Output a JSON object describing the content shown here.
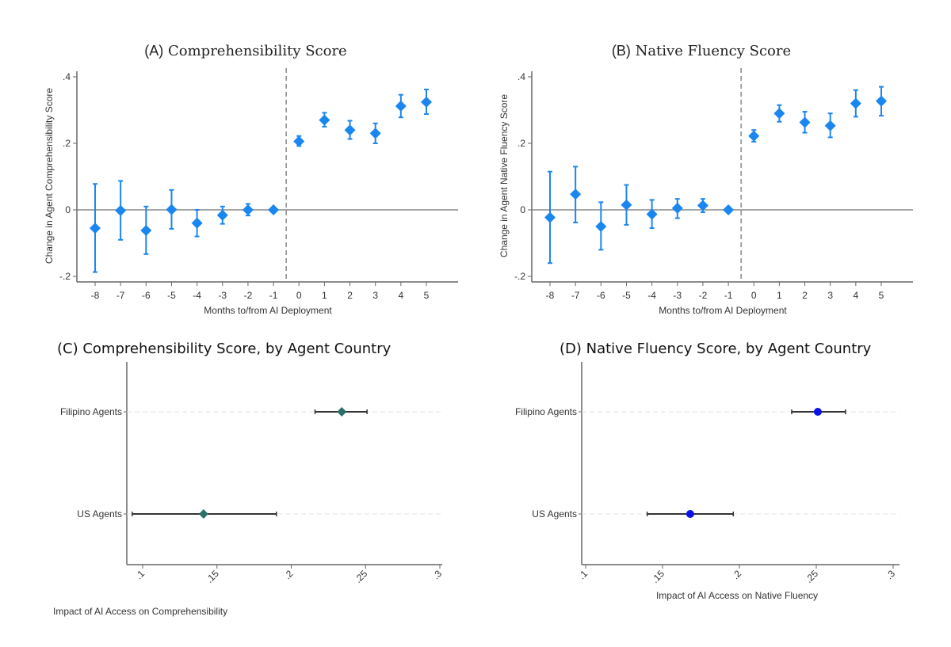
{
  "colors": {
    "event_study": "#1a87f0",
    "comp_country": "#2a7068",
    "fluency_country": "#0a12e8",
    "ci_country": "#333333"
  },
  "chart_data": [
    {
      "id": "A",
      "type": "scatter",
      "subtype": "event-study with 95% CI",
      "title_prefix": "(A)",
      "title": "Comprehensibility Score",
      "xlabel": "Months to/from AI Deployment",
      "ylabel": "Change in Agent Comprehensibility Score",
      "ylim": [
        -0.2,
        0.4
      ],
      "yticks": [
        -0.2,
        0,
        0.2,
        0.4
      ],
      "ytick_labels": [
        "-.2",
        "0",
        ".2",
        ".4"
      ],
      "x": [
        -8,
        -7,
        -6,
        -5,
        -4,
        -3,
        -2,
        -1,
        0,
        1,
        2,
        3,
        4,
        5
      ],
      "xtick_labels": [
        "-8",
        "-7",
        "-6",
        "-5",
        "-4",
        "-3",
        "-2",
        "-1",
        "0",
        "1",
        "2",
        "3",
        "4",
        "5"
      ],
      "y": [
        -0.055,
        -0.002,
        -0.062,
        0.001,
        -0.04,
        -0.016,
        0.0,
        0.0,
        0.206,
        0.27,
        0.24,
        0.23,
        0.312,
        0.324
      ],
      "ci_low": [
        -0.187,
        -0.09,
        -0.133,
        -0.057,
        -0.08,
        -0.042,
        -0.017,
        0.0,
        0.192,
        0.25,
        0.213,
        0.2,
        0.278,
        0.288
      ],
      "ci_high": [
        0.078,
        0.087,
        0.01,
        0.06,
        0.0,
        0.01,
        0.018,
        0.0,
        0.222,
        0.292,
        0.268,
        0.26,
        0.346,
        0.362
      ],
      "reference_line_y": 0,
      "deployment_line_x": -0.5
    },
    {
      "id": "B",
      "type": "scatter",
      "subtype": "event-study with 95% CI",
      "title_prefix": "(B)",
      "title": "Native Fluency Score",
      "xlabel": "Months to/from AI Deployment",
      "ylabel": "Change in Agent Native Fluency Score",
      "ylim": [
        -0.2,
        0.4
      ],
      "yticks": [
        -0.2,
        0,
        0.2,
        0.4
      ],
      "ytick_labels": [
        "-.2",
        "0",
        ".2",
        ".4"
      ],
      "x": [
        -8,
        -7,
        -6,
        -5,
        -4,
        -3,
        -2,
        -1,
        0,
        1,
        2,
        3,
        4,
        5
      ],
      "xtick_labels": [
        "-8",
        "-7",
        "-6",
        "-5",
        "-4",
        "-3",
        "-2",
        "-1",
        "0",
        "1",
        "2",
        "3",
        "4",
        "5"
      ],
      "y": [
        -0.023,
        0.047,
        -0.05,
        0.015,
        -0.013,
        0.005,
        0.013,
        0.0,
        0.222,
        0.29,
        0.263,
        0.253,
        0.32,
        0.327
      ],
      "ci_low": [
        -0.16,
        -0.038,
        -0.12,
        -0.045,
        -0.055,
        -0.025,
        -0.007,
        0.0,
        0.205,
        0.265,
        0.232,
        0.218,
        0.28,
        0.283
      ],
      "ci_high": [
        0.115,
        0.13,
        0.023,
        0.075,
        0.03,
        0.033,
        0.033,
        0.0,
        0.24,
        0.315,
        0.295,
        0.29,
        0.36,
        0.37
      ],
      "reference_line_y": 0,
      "deployment_line_x": -0.5
    },
    {
      "id": "C",
      "type": "scatter",
      "subtype": "coefficient plot",
      "title": "(C) Comprehensibility Score, by Agent Country",
      "xlabel": "Impact of AI Access on Comprehensibility",
      "xlim": [
        0.1,
        0.3
      ],
      "xticks": [
        0.1,
        0.15,
        0.2,
        0.25,
        0.3
      ],
      "xtick_labels": [
        ".1",
        ".15",
        ".2",
        ".25",
        ".3"
      ],
      "categories": [
        "Filipino Agents",
        "US Agents"
      ],
      "values": [
        0.234,
        0.141
      ],
      "ci_low": [
        0.216,
        0.093
      ],
      "ci_high": [
        0.251,
        0.19
      ],
      "marker": "diamond"
    },
    {
      "id": "D",
      "type": "scatter",
      "subtype": "coefficient plot",
      "title": "(D) Native Fluency Score, by Agent Country",
      "xlabel": "Impact of AI Access on Native Fluency",
      "xlim": [
        0.1,
        0.3
      ],
      "xticks": [
        0.1,
        0.15,
        0.2,
        0.25,
        0.3
      ],
      "xtick_labels": [
        ".1",
        ".15",
        ".2",
        ".25",
        ".3"
      ],
      "categories": [
        "Filipino Agents",
        "US Agents"
      ],
      "values": [
        0.251,
        0.168
      ],
      "ci_low": [
        0.234,
        0.14
      ],
      "ci_high": [
        0.269,
        0.196
      ],
      "marker": "circle"
    }
  ]
}
